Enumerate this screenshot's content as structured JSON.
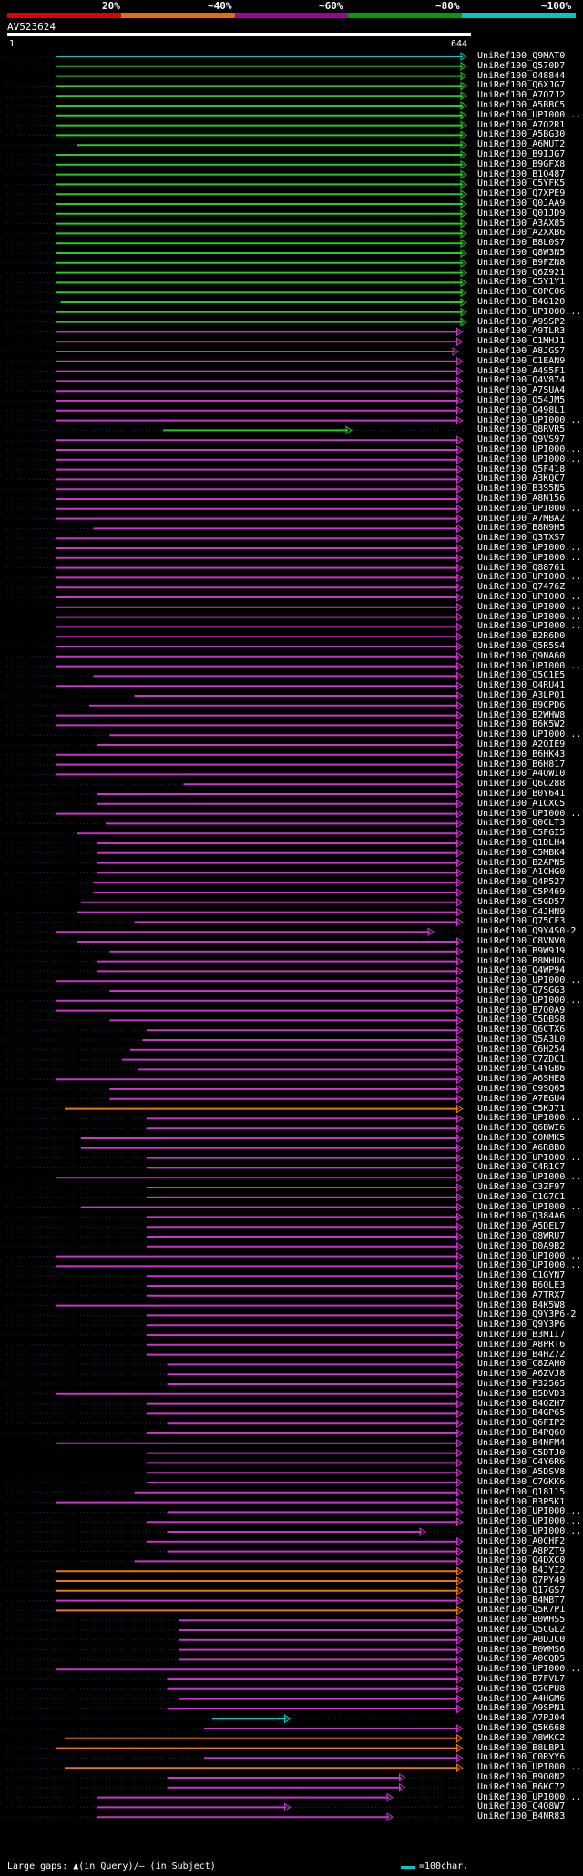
{
  "legend": {
    "labels": [
      "20%",
      "~40%",
      "~60%",
      "~80%",
      "~100%"
    ],
    "colors": [
      "#e00000",
      "#e07000",
      "#a000a0",
      "#00a000",
      "#00c8c8"
    ]
  },
  "query": {
    "title": "AV523624",
    "start": "1",
    "end": "644"
  },
  "footer": {
    "gap_text": "Large gaps: ▲(in Query)/— (in Subject)",
    "scale_text": "=100char."
  },
  "hits": [
    {
      "id": "UniRef100_Q9MAT0",
      "c": "cyan",
      "s": 0,
      "e": 1
    },
    {
      "id": "UniRef100_Q570D7",
      "c": "green",
      "s": 0,
      "e": 1
    },
    {
      "id": "UniRef100_O48844",
      "c": "green",
      "s": 0,
      "e": 1
    },
    {
      "id": "UniRef100_Q6XJG7",
      "c": "green",
      "s": 0,
      "e": 1
    },
    {
      "id": "UniRef100_A7Q7J2",
      "c": "green",
      "s": 0,
      "e": 1
    },
    {
      "id": "UniRef100_A5BBC5",
      "c": "green",
      "s": 0,
      "e": 1
    },
    {
      "id": "UniRef100_UPI000...",
      "c": "green",
      "s": 0,
      "e": 1
    },
    {
      "id": "UniRef100_A7Q2R1",
      "c": "green",
      "s": 0,
      "e": 1
    },
    {
      "id": "UniRef100_A5BG30",
      "c": "green",
      "s": 0,
      "e": 1
    },
    {
      "id": "UniRef100_A6MUT2",
      "c": "green",
      "s": 0.05,
      "e": 1
    },
    {
      "id": "UniRef100_B9IJG7",
      "c": "green",
      "s": 0,
      "e": 1
    },
    {
      "id": "UniRef100_B9GFX8",
      "c": "green",
      "s": 0,
      "e": 1
    },
    {
      "id": "UniRef100_B1Q487",
      "c": "green",
      "s": 0,
      "e": 1
    },
    {
      "id": "UniRef100_C5YFK5",
      "c": "green",
      "s": 0,
      "e": 1
    },
    {
      "id": "UniRef100_Q7XPE9",
      "c": "green",
      "s": 0,
      "e": 1
    },
    {
      "id": "UniRef100_Q0JAA9",
      "c": "green",
      "s": 0,
      "e": 1
    },
    {
      "id": "UniRef100_Q01JD9",
      "c": "green",
      "s": 0,
      "e": 1
    },
    {
      "id": "UniRef100_A3AX85",
      "c": "green",
      "s": 0,
      "e": 1
    },
    {
      "id": "UniRef100_A2XXB6",
      "c": "green",
      "s": 0,
      "e": 1
    },
    {
      "id": "UniRef100_B8L0S7",
      "c": "green",
      "s": 0,
      "e": 1
    },
    {
      "id": "UniRef100_Q8W3N5",
      "c": "green",
      "s": 0,
      "e": 1
    },
    {
      "id": "UniRef100_B9FZN8",
      "c": "green",
      "s": 0,
      "e": 1
    },
    {
      "id": "UniRef100_Q6Z921",
      "c": "green",
      "s": 0,
      "e": 1
    },
    {
      "id": "UniRef100_C5Y1Y1",
      "c": "green",
      "s": 0,
      "e": 1
    },
    {
      "id": "UniRef100_C0PC06",
      "c": "green",
      "s": 0,
      "e": 1
    },
    {
      "id": "UniRef100_B4G120",
      "c": "green",
      "s": 0.01,
      "e": 1
    },
    {
      "id": "UniRef100_UPI000...",
      "c": "green",
      "s": 0,
      "e": 1
    },
    {
      "id": "UniRef100_A9SSP2",
      "c": "green",
      "s": 0,
      "e": 1
    },
    {
      "id": "UniRef100_A9TLR3",
      "c": "magenta",
      "s": 0,
      "e": 0.99
    },
    {
      "id": "UniRef100_C1MHJ1",
      "c": "magenta",
      "s": 0,
      "e": 0.99
    },
    {
      "id": "UniRef100_A8JGS7",
      "c": "magenta",
      "s": 0,
      "e": 0.98
    },
    {
      "id": "UniRef100_C1EAN9",
      "c": "magenta",
      "s": 0,
      "e": 0.99
    },
    {
      "id": "UniRef100_A4S5F1",
      "c": "magenta",
      "s": 0,
      "e": 0.99
    },
    {
      "id": "UniRef100_Q4V874",
      "c": "magenta",
      "s": 0,
      "e": 0.99
    },
    {
      "id": "UniRef100_A7SUA4",
      "c": "magenta",
      "s": 0,
      "e": 0.99
    },
    {
      "id": "UniRef100_Q54JM5",
      "c": "magenta",
      "s": 0,
      "e": 0.99
    },
    {
      "id": "UniRef100_Q498L1",
      "c": "magenta",
      "s": 0,
      "e": 0.99
    },
    {
      "id": "UniRef100_UPI000...",
      "c": "magenta",
      "s": 0,
      "e": 0.99
    },
    {
      "id": "UniRef100_Q8RVR5",
      "c": "green",
      "s": 0.26,
      "e": 0.72
    },
    {
      "id": "UniRef100_Q9VS97",
      "c": "magenta",
      "s": 0,
      "e": 0.99
    },
    {
      "id": "UniRef100_UPI000...",
      "c": "magenta",
      "s": 0,
      "e": 0.99
    },
    {
      "id": "UniRef100_UPI000...",
      "c": "magenta",
      "s": 0,
      "e": 0.99
    },
    {
      "id": "UniRef100_Q5F418",
      "c": "magenta",
      "s": 0,
      "e": 0.99
    },
    {
      "id": "UniRef100_A3KQC7",
      "c": "magenta",
      "s": 0,
      "e": 0.99
    },
    {
      "id": "UniRef100_B3S5N5",
      "c": "magenta",
      "s": 0,
      "e": 0.99
    },
    {
      "id": "UniRef100_A8N156",
      "c": "magenta",
      "s": 0,
      "e": 0.99
    },
    {
      "id": "UniRef100_UPI000...",
      "c": "magenta",
      "s": 0,
      "e": 0.99
    },
    {
      "id": "UniRef100_A7MBA2",
      "c": "magenta",
      "s": 0,
      "e": 0.99
    },
    {
      "id": "UniRef100_B8N9H5",
      "c": "magenta",
      "s": 0.09,
      "e": 0.99
    },
    {
      "id": "UniRef100_Q3TXS7",
      "c": "magenta",
      "s": 0,
      "e": 0.99
    },
    {
      "id": "UniRef100_UPI000...",
      "c": "magenta",
      "s": 0,
      "e": 0.99
    },
    {
      "id": "UniRef100_UPI000...",
      "c": "magenta",
      "s": 0,
      "e": 0.99
    },
    {
      "id": "UniRef100_Q88761",
      "c": "magenta",
      "s": 0,
      "e": 0.99
    },
    {
      "id": "UniRef100_UPI000...",
      "c": "magenta",
      "s": 0,
      "e": 0.99
    },
    {
      "id": "UniRef100_Q7476Z",
      "c": "magenta",
      "s": 0,
      "e": 0.99
    },
    {
      "id": "UniRef100_UPI000...",
      "c": "magenta",
      "s": 0,
      "e": 0.99
    },
    {
      "id": "UniRef100_UPI000...",
      "c": "magenta",
      "s": 0,
      "e": 0.99
    },
    {
      "id": "UniRef100_UPI000...",
      "c": "magenta",
      "s": 0,
      "e": 0.99
    },
    {
      "id": "UniRef100_UPI000...",
      "c": "magenta",
      "s": 0,
      "e": 0.99
    },
    {
      "id": "UniRef100_B2R6D0",
      "c": "magenta",
      "s": 0,
      "e": 0.99
    },
    {
      "id": "UniRef100_Q5R5S4",
      "c": "magenta",
      "s": 0,
      "e": 0.99
    },
    {
      "id": "UniRef100_Q9NA60",
      "c": "magenta",
      "s": 0,
      "e": 0.99
    },
    {
      "id": "UniRef100_UPI000...",
      "c": "magenta",
      "s": 0,
      "e": 0.99
    },
    {
      "id": "UniRef100_Q5C1E5",
      "c": "magenta",
      "s": 0.09,
      "e": 0.99
    },
    {
      "id": "UniRef100_Q4RU41",
      "c": "magenta",
      "s": 0,
      "e": 0.99
    },
    {
      "id": "UniRef100_A3LPQ1",
      "c": "magenta",
      "s": 0.19,
      "e": 0.99
    },
    {
      "id": "UniRef100_B9CPD6",
      "c": "magenta",
      "s": 0.08,
      "e": 0.99
    },
    {
      "id": "UniRef100_B2WHW8",
      "c": "magenta",
      "s": 0,
      "e": 0.99
    },
    {
      "id": "UniRef100_B6K5W2",
      "c": "magenta",
      "s": 0,
      "e": 0.99
    },
    {
      "id": "UniRef100_UPI000...",
      "c": "magenta",
      "s": 0.13,
      "e": 0.99
    },
    {
      "id": "UniRef100_A2QIE9",
      "c": "magenta",
      "s": 0.1,
      "e": 0.99
    },
    {
      "id": "UniRef100_B6HK43",
      "c": "magenta",
      "s": 0,
      "e": 0.99
    },
    {
      "id": "UniRef100_B6H817",
      "c": "magenta",
      "s": 0,
      "e": 0.99
    },
    {
      "id": "UniRef100_A4QWI0",
      "c": "magenta",
      "s": 0,
      "e": 0.99
    },
    {
      "id": "UniRef100_Q6C288",
      "c": "magenta",
      "s": 0.31,
      "e": 0.99
    },
    {
      "id": "UniRef100_B0Y641",
      "c": "magenta",
      "s": 0.1,
      "e": 0.99
    },
    {
      "id": "UniRef100_A1CXC5",
      "c": "magenta",
      "s": 0.1,
      "e": 0.99
    },
    {
      "id": "UniRef100_UPI000...",
      "c": "magenta",
      "s": 0,
      "e": 0.99
    },
    {
      "id": "UniRef100_Q0CLT3",
      "c": "magenta",
      "s": 0.12,
      "e": 0.99
    },
    {
      "id": "UniRef100_C5FGI5",
      "c": "magenta",
      "s": 0.05,
      "e": 0.99
    },
    {
      "id": "UniRef100_Q1DLH4",
      "c": "magenta",
      "s": 0.1,
      "e": 0.99
    },
    {
      "id": "UniRef100_C5MBK4",
      "c": "magenta",
      "s": 0.1,
      "e": 0.99
    },
    {
      "id": "UniRef100_B2APN5",
      "c": "magenta",
      "s": 0.1,
      "e": 0.99
    },
    {
      "id": "UniRef100_A1CHG0",
      "c": "magenta",
      "s": 0.1,
      "e": 0.99
    },
    {
      "id": "UniRef100_Q4P527",
      "c": "magenta",
      "s": 0.09,
      "e": 0.99
    },
    {
      "id": "UniRef100_C5P469",
      "c": "magenta",
      "s": 0.09,
      "e": 0.99
    },
    {
      "id": "UniRef100_C5GD57",
      "c": "magenta",
      "s": 0.06,
      "e": 0.99
    },
    {
      "id": "UniRef100_C4JHN9",
      "c": "magenta",
      "s": 0.05,
      "e": 0.99
    },
    {
      "id": "UniRef100_Q75CF3",
      "c": "magenta",
      "s": 0.19,
      "e": 0.99
    },
    {
      "id": "UniRef100_Q9Y4S0-2",
      "c": "magenta",
      "s": 0,
      "e": 0.92
    },
    {
      "id": "UniRef100_C8VNV0",
      "c": "magenta",
      "s": 0.05,
      "e": 0.99
    },
    {
      "id": "UniRef100_B9W9J9",
      "c": "magenta",
      "s": 0.13,
      "e": 0.99
    },
    {
      "id": "UniRef100_B8MHU6",
      "c": "magenta",
      "s": 0.1,
      "e": 0.99
    },
    {
      "id": "UniRef100_Q4WP94",
      "c": "magenta",
      "s": 0.1,
      "e": 0.99
    },
    {
      "id": "UniRef100_UPI000...",
      "c": "magenta",
      "s": 0,
      "e": 0.99
    },
    {
      "id": "UniRef100_Q7SGG3",
      "c": "magenta",
      "s": 0.13,
      "e": 0.99
    },
    {
      "id": "UniRef100_UPI000...",
      "c": "magenta",
      "s": 0,
      "e": 0.99
    },
    {
      "id": "UniRef100_B7Q0A9",
      "c": "magenta",
      "s": 0,
      "e": 0.99
    },
    {
      "id": "UniRef100_C5DBS8",
      "c": "magenta",
      "s": 0.13,
      "e": 0.99
    },
    {
      "id": "UniRef100_Q6CTX6",
      "c": "magenta",
      "s": 0.22,
      "e": 0.99
    },
    {
      "id": "UniRef100_Q5A3L0",
      "c": "magenta",
      "s": 0.21,
      "e": 0.99
    },
    {
      "id": "UniRef100_C6H254",
      "c": "magenta",
      "s": 0.18,
      "e": 0.99
    },
    {
      "id": "UniRef100_C7ZDC1",
      "c": "magenta",
      "s": 0.16,
      "e": 0.99
    },
    {
      "id": "UniRef100_C4YGB6",
      "c": "magenta",
      "s": 0.2,
      "e": 0.99
    },
    {
      "id": "UniRef100_A6SHE8",
      "c": "magenta",
      "s": 0,
      "e": 0.99
    },
    {
      "id": "UniRef100_C9SQ65",
      "c": "magenta",
      "s": 0.13,
      "e": 0.99
    },
    {
      "id": "UniRef100_A7EGU4",
      "c": "magenta",
      "s": 0.13,
      "e": 0.99
    },
    {
      "id": "UniRef100_C5KJ71",
      "c": "orange",
      "s": 0.02,
      "e": 0.99
    },
    {
      "id": "UniRef100_UPI000...",
      "c": "magenta",
      "s": 0.22,
      "e": 0.99
    },
    {
      "id": "UniRef100_Q6BWI6",
      "c": "magenta",
      "s": 0.22,
      "e": 0.99
    },
    {
      "id": "UniRef100_C0NMK5",
      "c": "magenta",
      "s": 0.06,
      "e": 0.99
    },
    {
      "id": "UniRef100_A6R8B0",
      "c": "magenta",
      "s": 0.06,
      "e": 0.99
    },
    {
      "id": "UniRef100_UPI000...",
      "c": "magenta",
      "s": 0.22,
      "e": 0.99
    },
    {
      "id": "UniRef100_C4R1C7",
      "c": "magenta",
      "s": 0.22,
      "e": 0.99
    },
    {
      "id": "UniRef100_UPI000...",
      "c": "magenta",
      "s": 0,
      "e": 0.99
    },
    {
      "id": "UniRef100_C3ZF97",
      "c": "magenta",
      "s": 0.22,
      "e": 0.99
    },
    {
      "id": "UniRef100_C1G7C1",
      "c": "magenta",
      "s": 0.22,
      "e": 0.99
    },
    {
      "id": "UniRef100_UPI000...",
      "c": "magenta",
      "s": 0.06,
      "e": 0.99
    },
    {
      "id": "UniRef100_Q384A6",
      "c": "magenta",
      "s": 0.22,
      "e": 0.99
    },
    {
      "id": "UniRef100_A5DEL7",
      "c": "magenta",
      "s": 0.22,
      "e": 0.99
    },
    {
      "id": "UniRef100_Q8WRU7",
      "c": "magenta",
      "s": 0.22,
      "e": 0.99
    },
    {
      "id": "UniRef100_D0A9B2",
      "c": "magenta",
      "s": 0.22,
      "e": 0.99
    },
    {
      "id": "UniRef100_UPI000...",
      "c": "magenta",
      "s": 0,
      "e": 0.99
    },
    {
      "id": "UniRef100_UPI000...",
      "c": "magenta",
      "s": 0,
      "e": 0.99
    },
    {
      "id": "UniRef100_C1GYN7",
      "c": "magenta",
      "s": 0.22,
      "e": 0.99
    },
    {
      "id": "UniRef100_B6QLE3",
      "c": "magenta",
      "s": 0.22,
      "e": 0.99
    },
    {
      "id": "UniRef100_A7TRX7",
      "c": "magenta",
      "s": 0.22,
      "e": 0.99
    },
    {
      "id": "UniRef100_B4K5W8",
      "c": "magenta",
      "s": 0,
      "e": 0.99
    },
    {
      "id": "UniRef100_Q9Y3P6-2",
      "c": "magenta",
      "s": 0.22,
      "e": 0.99
    },
    {
      "id": "UniRef100_Q9Y3P6",
      "c": "magenta",
      "s": 0.22,
      "e": 0.99
    },
    {
      "id": "UniRef100_B3M1I7",
      "c": "magenta",
      "s": 0.22,
      "e": 0.99
    },
    {
      "id": "UniRef100_A8PRT6",
      "c": "magenta",
      "s": 0.22,
      "e": 0.99
    },
    {
      "id": "UniRef100_B4HZ72",
      "c": "magenta",
      "s": 0.22,
      "e": 0.99
    },
    {
      "id": "UniRef100_C8ZAH0",
      "c": "magenta",
      "s": 0.27,
      "e": 0.99
    },
    {
      "id": "UniRef100_A6ZVJ8",
      "c": "magenta",
      "s": 0.27,
      "e": 0.99
    },
    {
      "id": "UniRef100_P32565",
      "c": "magenta",
      "s": 0.27,
      "e": 0.99
    },
    {
      "id": "UniRef100_B5DVD3",
      "c": "magenta",
      "s": 0,
      "e": 0.99
    },
    {
      "id": "UniRef100_B4QZH7",
      "c": "magenta",
      "s": 0.22,
      "e": 0.99
    },
    {
      "id": "UniRef100_B4GP65",
      "c": "magenta",
      "s": 0.22,
      "e": 0.99
    },
    {
      "id": "UniRef100_Q6FIP2",
      "c": "magenta",
      "s": 0.27,
      "e": 0.99
    },
    {
      "id": "UniRef100_B4PQ60",
      "c": "magenta",
      "s": 0.22,
      "e": 0.99
    },
    {
      "id": "UniRef100_B4NFM4",
      "c": "magenta",
      "s": 0,
      "e": 0.99
    },
    {
      "id": "UniRef100_C5DTJ0",
      "c": "magenta",
      "s": 0.22,
      "e": 0.99
    },
    {
      "id": "UniRef100_C4Y6R6",
      "c": "magenta",
      "s": 0.22,
      "e": 0.99
    },
    {
      "id": "UniRef100_A5DSV8",
      "c": "magenta",
      "s": 0.22,
      "e": 0.99
    },
    {
      "id": "UniRef100_C7GKK6",
      "c": "magenta",
      "s": 0.22,
      "e": 0.99
    },
    {
      "id": "UniRef100_Q18115",
      "c": "magenta",
      "s": 0.19,
      "e": 0.99
    },
    {
      "id": "UniRef100_B3P5K1",
      "c": "magenta",
      "s": 0,
      "e": 0.99
    },
    {
      "id": "UniRef100_UPI000...",
      "c": "magenta",
      "s": 0.27,
      "e": 0.99
    },
    {
      "id": "UniRef100_UPI000...",
      "c": "magenta",
      "s": 0.22,
      "e": 0.99
    },
    {
      "id": "UniRef100_UPI000...",
      "c": "magenta",
      "s": 0.27,
      "e": 0.9
    },
    {
      "id": "UniRef100_A0CHF2",
      "c": "magenta",
      "s": 0.22,
      "e": 0.99
    },
    {
      "id": "UniRef100_A8PZT9",
      "c": "magenta",
      "s": 0.27,
      "e": 0.99
    },
    {
      "id": "UniRef100_Q4DXC0",
      "c": "magenta",
      "s": 0.19,
      "e": 0.99
    },
    {
      "id": "UniRef100_B4JYI2",
      "c": "orange",
      "s": 0,
      "e": 0.99
    },
    {
      "id": "UniRef100_Q7PY49",
      "c": "orange",
      "s": 0,
      "e": 0.99
    },
    {
      "id": "UniRef100_Q17GS7",
      "c": "orange",
      "s": 0,
      "e": 0.99
    },
    {
      "id": "UniRef100_B4MBT7",
      "c": "magenta",
      "s": 0,
      "e": 0.99
    },
    {
      "id": "UniRef100_Q5K7P1",
      "c": "orange",
      "s": 0,
      "e": 0.99
    },
    {
      "id": "UniRef100_B0WHS5",
      "c": "magenta",
      "s": 0.3,
      "e": 0.99
    },
    {
      "id": "UniRef100_Q5CGL2",
      "c": "magenta",
      "s": 0.3,
      "e": 0.99
    },
    {
      "id": "UniRef100_A0DJC0",
      "c": "magenta",
      "s": 0.3,
      "e": 0.99
    },
    {
      "id": "UniRef100_B0WMS6",
      "c": "magenta",
      "s": 0.3,
      "e": 0.99
    },
    {
      "id": "UniRef100_A0CQD5",
      "c": "magenta",
      "s": 0.3,
      "e": 0.99
    },
    {
      "id": "UniRef100_UPI000...",
      "c": "magenta",
      "s": 0,
      "e": 0.99
    },
    {
      "id": "UniRef100_B7FVL7",
      "c": "magenta",
      "s": 0.27,
      "e": 0.99
    },
    {
      "id": "UniRef100_Q5CPU8",
      "c": "magenta",
      "s": 0.27,
      "e": 0.99
    },
    {
      "id": "UniRef100_A4HGM6",
      "c": "magenta",
      "s": 0.3,
      "e": 0.99
    },
    {
      "id": "UniRef100_A9SPN1",
      "c": "magenta",
      "s": 0.27,
      "e": 0.99
    },
    {
      "id": "UniRef100_A7PJ04",
      "c": "cyan",
      "s": 0.38,
      "e": 0.57
    },
    {
      "id": "UniRef100_Q5K668",
      "c": "magenta",
      "s": 0.36,
      "e": 0.99
    },
    {
      "id": "UniRef100_A8WKC2",
      "c": "orange",
      "s": 0.02,
      "e": 0.99
    },
    {
      "id": "UniRef100_B8LBP1",
      "c": "orange",
      "s": 0,
      "e": 0.99
    },
    {
      "id": "UniRef100_C0RYY6",
      "c": "magenta",
      "s": 0.36,
      "e": 0.99
    },
    {
      "id": "UniRef100_UPI000...",
      "c": "orange",
      "s": 0.02,
      "e": 0.99
    },
    {
      "id": "UniRef100_B9Q0N2",
      "c": "magenta",
      "s": 0.27,
      "e": 0.85
    },
    {
      "id": "UniRef100_B6KC72",
      "c": "magenta",
      "s": 0.27,
      "e": 0.85
    },
    {
      "id": "UniRef100_UPI000...",
      "c": "magenta",
      "s": 0.1,
      "e": 0.82
    },
    {
      "id": "UniRef100_C4Q8W7",
      "c": "magenta",
      "s": 0.1,
      "e": 0.57
    },
    {
      "id": "UniRef100_B4NR83",
      "c": "magenta",
      "s": 0.1,
      "e": 0.82
    }
  ]
}
